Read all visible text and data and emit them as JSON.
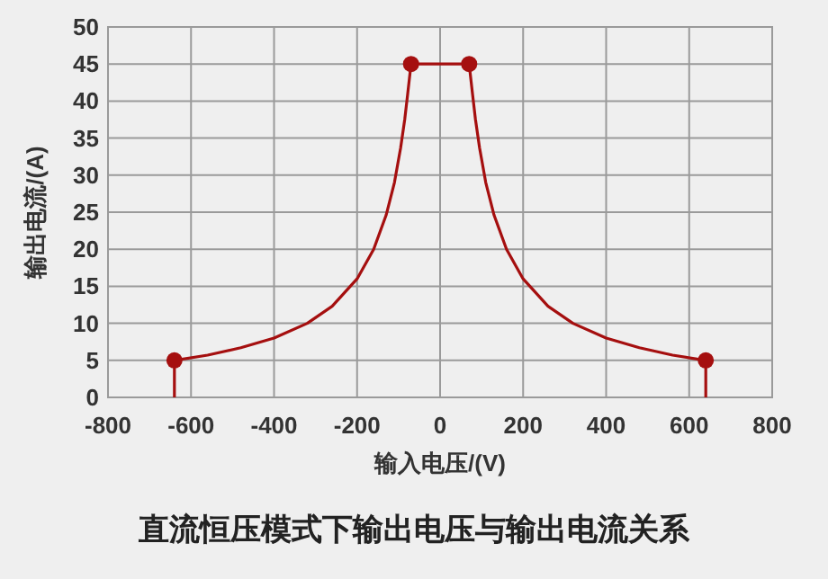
{
  "chart_data": {
    "type": "line",
    "title": "直流恒压模式下输出电压与输出电流关系",
    "xlabel": "输入电压/(V)",
    "ylabel": "输出电流/(A)",
    "xlim": [
      -800,
      800
    ],
    "xticks": [
      -800,
      -600,
      -400,
      -200,
      0,
      200,
      400,
      600,
      800
    ],
    "ylim": [
      0,
      50
    ],
    "yticks": [
      0,
      5,
      10,
      15,
      20,
      25,
      30,
      35,
      40,
      45,
      50
    ],
    "grid": true,
    "series": [
      {
        "color": "#a50f0f",
        "marker": "none",
        "x": [
          -640,
          -640,
          -560,
          -480,
          -400,
          -320,
          -260,
          -200,
          -160,
          -130,
          -110,
          -95,
          -85,
          -78,
          -70,
          70,
          78,
          85,
          95,
          110,
          130,
          160,
          200,
          260,
          320,
          400,
          480,
          560,
          640,
          640
        ],
        "values": [
          0,
          5,
          5.7,
          6.7,
          8,
          10,
          12.3,
          16,
          20,
          24.6,
          29,
          33.7,
          37.6,
          41,
          45,
          45,
          41,
          37.6,
          33.7,
          29,
          24.6,
          20,
          16,
          12.3,
          10,
          8,
          6.7,
          5.7,
          5,
          0
        ]
      },
      {
        "type": "scatter",
        "color": "#a50f0f",
        "marker": "circle",
        "x": [
          -640,
          -70,
          70,
          640
        ],
        "values": [
          5,
          45,
          45,
          5
        ]
      }
    ]
  }
}
